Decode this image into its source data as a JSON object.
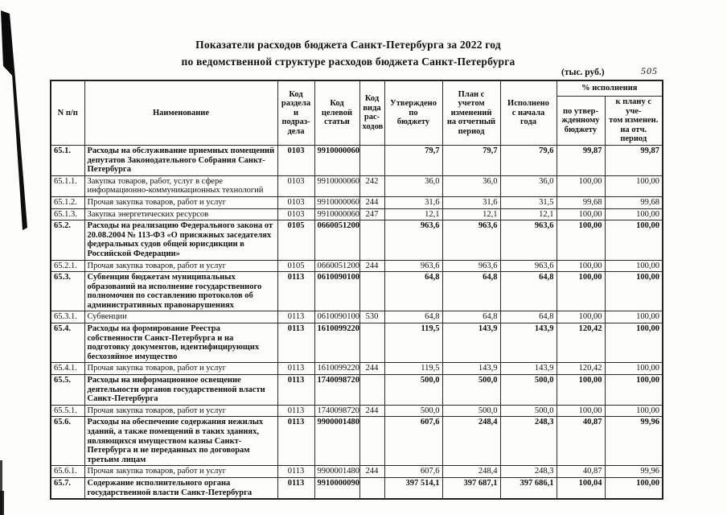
{
  "doc": {
    "title_line1": "Показатели расходов бюджета Санкт-Петербурга за 2022 год",
    "title_line2": "по ведомственной структуре расходов бюджета Санкт-Петербурга",
    "units": "(тыс. руб.)",
    "page_number": "505"
  },
  "table": {
    "headers": {
      "num": "N п/п",
      "name": "Наименование",
      "section": "Код\nраздела и\nподраз-\nдела",
      "article": "Код\nцелевой\nстатьи",
      "kind": "Код\nвида\nрас-\nходов",
      "approved": "Утверждено\nпо\nбюджету",
      "plan": "План с учетом\nизменений\nна отчетный\nпериод",
      "executed": "Исполнено\nс начала\nгода",
      "pct_group": "% исполнения",
      "pct_approved": "по утвер-\nжденному\nбюджету",
      "pct_plan": "к плану с уче-\nтом изменен.\nна отч. период"
    },
    "rows": [
      {
        "num": "65.1.",
        "bold": true,
        "name": "Расходы на обслуживание приемных помещений\nдепутатов Законодательного Собрания Санкт-\nПетербурга",
        "section": "0103",
        "article": "9910000060",
        "kind": "",
        "approved": "79,7",
        "plan": "79,7",
        "executed": "79,6",
        "pct_approved": "99,87",
        "pct_plan": "99,87"
      },
      {
        "num": "65.1.1.",
        "bold": false,
        "name": "Закупка товаров, работ, услуг в сфере\nинформационно-коммуникационных технологий",
        "section": "0103",
        "article": "9910000060",
        "kind": "242",
        "approved": "36,0",
        "plan": "36,0",
        "executed": "36,0",
        "pct_approved": "100,00",
        "pct_plan": "100,00"
      },
      {
        "num": "65.1.2.",
        "bold": false,
        "name": "Прочая закупка товаров, работ и услуг",
        "section": "0103",
        "article": "9910000060",
        "kind": "244",
        "approved": "31,6",
        "plan": "31,6",
        "executed": "31,5",
        "pct_approved": "99,68",
        "pct_plan": "99,68"
      },
      {
        "num": "65.1.3.",
        "bold": false,
        "name": "Закупка энергетических ресурсов",
        "section": "0103",
        "article": "9910000060",
        "kind": "247",
        "approved": "12,1",
        "plan": "12,1",
        "executed": "12,1",
        "pct_approved": "100,00",
        "pct_plan": "100,00"
      },
      {
        "num": "65.2.",
        "bold": true,
        "name": "Расходы на реализацию Федерального закона от\n20.08.2004 № 113-ФЗ «О присяжных заседателях\nфедеральных судов общей юрисдикции в\nРоссийской Федерации»",
        "section": "0105",
        "article": "0660051200",
        "kind": "",
        "approved": "963,6",
        "plan": "963,6",
        "executed": "963,6",
        "pct_approved": "100,00",
        "pct_plan": "100,00"
      },
      {
        "num": "65.2.1.",
        "bold": false,
        "name": "Прочая закупка товаров, работ и услуг",
        "section": "0105",
        "article": "0660051200",
        "kind": "244",
        "approved": "963,6",
        "plan": "963,6",
        "executed": "963,6",
        "pct_approved": "100,00",
        "pct_plan": "100,00"
      },
      {
        "num": "65.3.",
        "bold": true,
        "name": "Субвенции бюджетам муниципальных\nобразований на исполнение государственного\nполномочия по составлению протоколов об\nадминистративных правонарушениях",
        "section": "0113",
        "article": "0610090100",
        "kind": "",
        "approved": "64,8",
        "plan": "64,8",
        "executed": "64,8",
        "pct_approved": "100,00",
        "pct_plan": "100,00"
      },
      {
        "num": "65.3.1.",
        "bold": false,
        "name": "Субвенции",
        "section": "0113",
        "article": "0610090100",
        "kind": "530",
        "approved": "64,8",
        "plan": "64,8",
        "executed": "64,8",
        "pct_approved": "100,00",
        "pct_plan": "100,00"
      },
      {
        "num": "65.4.",
        "bold": true,
        "name": "Расходы на формирование Реестра\nсобственности Санкт-Петербурга и на\nподготовку документов, идентифицирующих\nбесхозяйное имущество",
        "section": "0113",
        "article": "1610099220",
        "kind": "",
        "approved": "119,5",
        "plan": "143,9",
        "executed": "143,9",
        "pct_approved": "120,42",
        "pct_plan": "100,00"
      },
      {
        "num": "65.4.1.",
        "bold": false,
        "name": "Прочая закупка товаров, работ и услуг",
        "section": "0113",
        "article": "1610099220",
        "kind": "244",
        "approved": "119,5",
        "plan": "143,9",
        "executed": "143,9",
        "pct_approved": "120,42",
        "pct_plan": "100,00"
      },
      {
        "num": "65.5.",
        "bold": true,
        "name": "Расходы на информационное освещение\nдеятельности органов государственной власти\nСанкт-Петербурга",
        "section": "0113",
        "article": "1740098720",
        "kind": "",
        "approved": "500,0",
        "plan": "500,0",
        "executed": "500,0",
        "pct_approved": "100,00",
        "pct_plan": "100,00"
      },
      {
        "num": "65.5.1.",
        "bold": false,
        "name": "Прочая закупка товаров, работ и услуг",
        "section": "0113",
        "article": "1740098720",
        "kind": "244",
        "approved": "500,0",
        "plan": "500,0",
        "executed": "500,0",
        "pct_approved": "100,00",
        "pct_plan": "100,00"
      },
      {
        "num": "65.6.",
        "bold": true,
        "name": "Расходы на обеспечение содержания нежилых\nзданий, а также помещений в таких зданиях,\nявляющихся имуществом казны Санкт-\nПетербурга и не переданных по договорам\nтретьим лицам",
        "section": "0113",
        "article": "9900001480",
        "kind": "",
        "approved": "607,6",
        "plan": "248,4",
        "executed": "248,3",
        "pct_approved": "40,87",
        "pct_plan": "99,96"
      },
      {
        "num": "65.6.1.",
        "bold": false,
        "name": "Прочая закупка товаров, работ и услуг",
        "section": "0113",
        "article": "9900001480",
        "kind": "244",
        "approved": "607,6",
        "plan": "248,4",
        "executed": "248,3",
        "pct_approved": "40,87",
        "pct_plan": "99,96"
      },
      {
        "num": "65.7.",
        "bold": true,
        "name": "Содержание исполнительного органа\nгосударственной  власти Санкт-Петербурга",
        "section": "0113",
        "article": "9910000090",
        "kind": "",
        "approved": "397 514,1",
        "plan": "397 687,1",
        "executed": "397 686,1",
        "pct_approved": "100,04",
        "pct_plan": "100,00"
      }
    ]
  }
}
